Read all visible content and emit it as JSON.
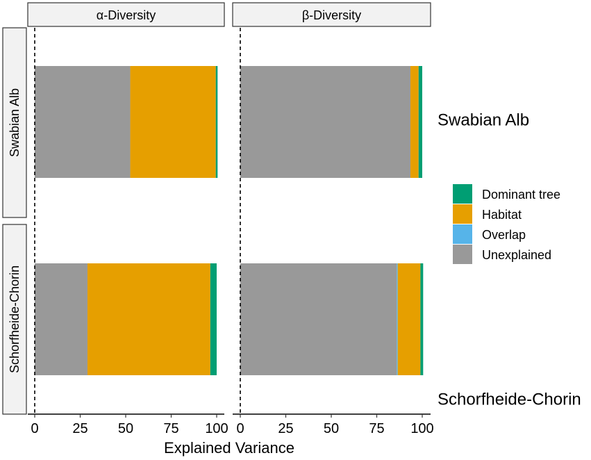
{
  "chart_data": {
    "type": "bar",
    "orientation": "horizontal",
    "stacked": true,
    "xlabel": "Explained Variance",
    "xlim": [
      0,
      100
    ],
    "xticks": [
      0,
      25,
      50,
      75,
      100
    ],
    "columns": [
      "α-Diversity",
      "β-Diversity"
    ],
    "rows": [
      "Swabian Alb",
      "Schorfheide-Chorin"
    ],
    "series": [
      {
        "name": "Unexplained",
        "color": "#999999"
      },
      {
        "name": "Overlap",
        "color": "#56B4E9"
      },
      {
        "name": "Habitat",
        "color": "#E69F00"
      },
      {
        "name": "Dominant tree",
        "color": "#009E73"
      }
    ],
    "legend": {
      "placement": "right",
      "entries": [
        "Dominant tree",
        "Habitat",
        "Overlap",
        "Unexplained"
      ]
    },
    "panels": [
      {
        "row": "Swabian Alb",
        "column": "α-Diversity",
        "values": {
          "Unexplained": 52.5,
          "Overlap": 0,
          "Habitat": 47.0,
          "Dominant tree": 1.0
        }
      },
      {
        "row": "Swabian Alb",
        "column": "β-Diversity",
        "values": {
          "Unexplained": 93.5,
          "Overlap": 0,
          "Habitat": 4.5,
          "Dominant tree": 2.0
        }
      },
      {
        "row": "Schorfheide-Chorin",
        "column": "α-Diversity",
        "values": {
          "Unexplained": 29.0,
          "Overlap": 0,
          "Habitat": 67.5,
          "Dominant tree": 3.5
        }
      },
      {
        "row": "Schorfheide-Chorin",
        "column": "β-Diversity",
        "values": {
          "Unexplained": 86.0,
          "Overlap": 0.5,
          "Habitat": 12.5,
          "Dominant tree": 1.5
        }
      }
    ]
  }
}
